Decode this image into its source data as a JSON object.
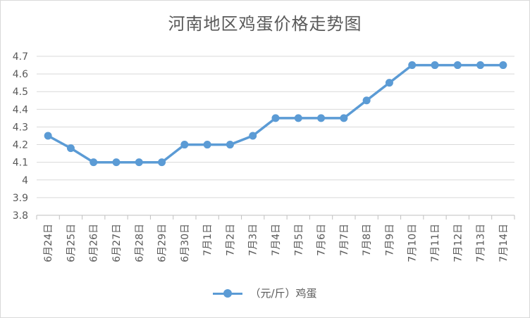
{
  "chart_data": {
    "type": "line",
    "title": "河南地区鸡蛋价格走势图",
    "categories": [
      "6月24日",
      "6月25日",
      "6月26日",
      "6月27日",
      "6月28日",
      "6月29日",
      "6月30日",
      "7月1日",
      "7月2日",
      "7月3日",
      "7月4日",
      "7月5日",
      "7月6日",
      "7月7日",
      "7月8日",
      "7月9日",
      "7月10日",
      "7月11日",
      "7月12日",
      "7月13日",
      "7月14日"
    ],
    "series": [
      {
        "name": "（元/斤）鸡蛋",
        "color": "#5b9bd5",
        "values": [
          4.25,
          4.18,
          4.1,
          4.1,
          4.1,
          4.1,
          4.2,
          4.2,
          4.2,
          4.25,
          4.35,
          4.35,
          4.35,
          4.35,
          4.45,
          4.55,
          4.65,
          4.65,
          4.65,
          4.65,
          4.65
        ]
      }
    ],
    "ylim": [
      3.8,
      4.7
    ],
    "yticks": [
      "3.8",
      "3.9",
      "4",
      "4.1",
      "4.2",
      "4.3",
      "4.4",
      "4.5",
      "4.6",
      "4.7"
    ],
    "grid": true,
    "legend_position": "bottom",
    "xlabel": "",
    "ylabel": ""
  }
}
